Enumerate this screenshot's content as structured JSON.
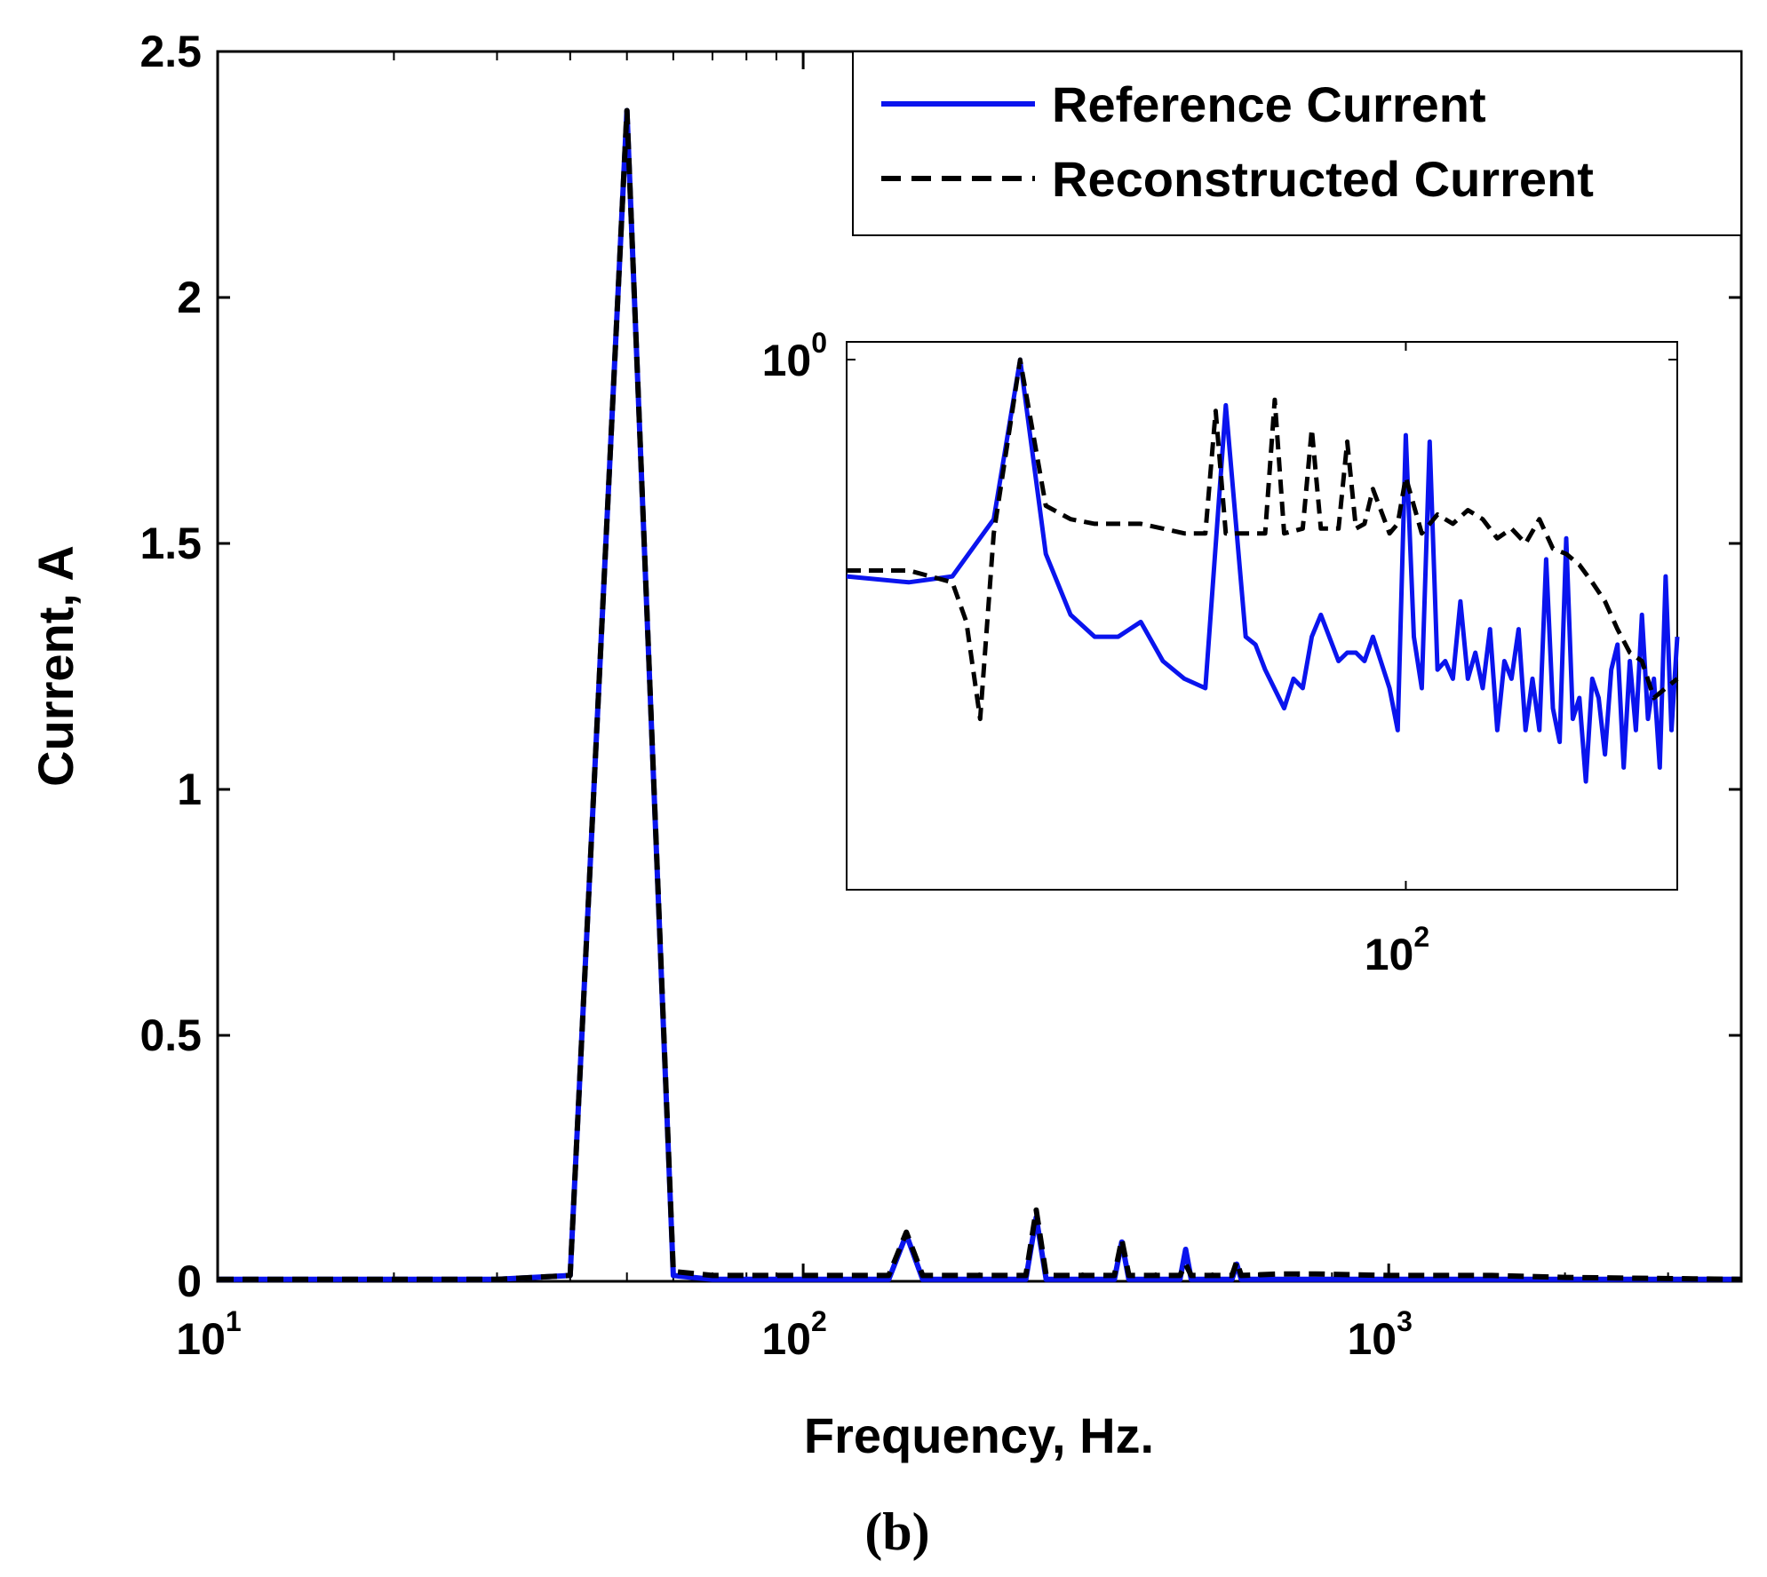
{
  "caption": "(b)",
  "colors": {
    "reference": "#0a14ee",
    "reconstructed": "#000000"
  },
  "chart_data": [
    {
      "type": "line",
      "xlabel": "Frequency, Hz.",
      "ylabel": "Current, A",
      "xscale": "log",
      "xlim": [
        10,
        4000
      ],
      "ylim": [
        0,
        2.5
      ],
      "yticks": [
        "0",
        "0.5",
        "1",
        "1.5",
        "2",
        "2.5"
      ],
      "xticks": [
        {
          "base": "10",
          "exp": "1"
        },
        {
          "base": "10",
          "exp": "2"
        },
        {
          "base": "10",
          "exp": "3"
        }
      ],
      "grid": false,
      "legend_position": "top-right",
      "series": [
        {
          "name": "Reference Current",
          "style": "solid",
          "x": [
            10,
            30,
            40,
            50,
            60,
            70,
            100,
            140,
            150,
            160,
            240,
            250,
            260,
            340,
            350,
            360,
            440,
            450,
            460,
            540,
            550,
            560,
            650,
            750,
            1000,
            1500,
            2000,
            4000
          ],
          "y": [
            0.004,
            0.004,
            0.012,
            2.38,
            0.012,
            0.004,
            0.004,
            0.004,
            0.095,
            0.004,
            0.004,
            0.13,
            0.004,
            0.004,
            0.08,
            0.004,
            0.004,
            0.065,
            0.004,
            0.004,
            0.035,
            0.004,
            0.004,
            0.004,
            0.004,
            0.004,
            0.004,
            0.004
          ]
        },
        {
          "name": "Reconstructed Current",
          "style": "dashed",
          "x": [
            10,
            30,
            40,
            50,
            60,
            70,
            100,
            140,
            150,
            160,
            240,
            250,
            260,
            340,
            350,
            360,
            440,
            450,
            460,
            540,
            550,
            560,
            650,
            750,
            1000,
            1500,
            2000,
            4000
          ],
          "y": [
            0.004,
            0.004,
            0.012,
            2.38,
            0.02,
            0.012,
            0.012,
            0.012,
            0.1,
            0.012,
            0.012,
            0.145,
            0.012,
            0.012,
            0.085,
            0.012,
            0.012,
            0.035,
            0.012,
            0.012,
            0.04,
            0.012,
            0.015,
            0.015,
            0.012,
            0.012,
            0.008,
            0.004
          ]
        }
      ]
    },
    {
      "type": "line",
      "role": "inset",
      "xscale": "log",
      "yscale": "log",
      "xlim": [
        50,
        140
      ],
      "ylim": [
        0.1,
        1.08
      ],
      "xticks": [
        {
          "base": "10",
          "exp": "2"
        }
      ],
      "yticks": [
        {
          "base": "10",
          "exp": "0"
        }
      ],
      "series": [
        {
          "name": "Reference Current",
          "style": "solid",
          "x": [
            50,
            54,
            57,
            60,
            62,
            64,
            66,
            68,
            70,
            72,
            74,
            76,
            78,
            80,
            82,
            83,
            84,
            86,
            87,
            88,
            89,
            90,
            92,
            93,
            94,
            95,
            96,
            98,
            99,
            100,
            101,
            102,
            103,
            104,
            105,
            106,
            107,
            108,
            109,
            110,
            111,
            112,
            113,
            114,
            115,
            116,
            117,
            118,
            119,
            120,
            121,
            122,
            123,
            124,
            125,
            126,
            127,
            128,
            129,
            130,
            131,
            132,
            133,
            134,
            135,
            136,
            137,
            138,
            139,
            140
          ],
          "y": [
            0.39,
            0.38,
            0.39,
            0.5,
            1.0,
            0.43,
            0.33,
            0.3,
            0.3,
            0.32,
            0.27,
            0.25,
            0.24,
            0.82,
            0.3,
            0.29,
            0.26,
            0.22,
            0.25,
            0.24,
            0.3,
            0.33,
            0.27,
            0.28,
            0.28,
            0.27,
            0.3,
            0.24,
            0.2,
            0.72,
            0.3,
            0.24,
            0.7,
            0.26,
            0.27,
            0.25,
            0.35,
            0.25,
            0.28,
            0.24,
            0.31,
            0.2,
            0.27,
            0.25,
            0.31,
            0.2,
            0.25,
            0.2,
            0.42,
            0.22,
            0.19,
            0.46,
            0.21,
            0.23,
            0.16,
            0.25,
            0.23,
            0.18,
            0.26,
            0.29,
            0.17,
            0.27,
            0.2,
            0.33,
            0.21,
            0.25,
            0.17,
            0.39,
            0.2,
            0.3
          ]
        },
        {
          "name": "Reconstructed Current",
          "style": "dashed",
          "x": [
            50,
            54,
            57,
            58,
            59,
            60,
            62,
            64,
            66,
            68,
            70,
            72,
            74,
            76,
            78,
            79,
            80,
            82,
            84,
            85,
            86,
            88,
            89,
            90,
            92,
            93,
            94,
            95,
            96,
            98,
            99,
            100,
            102,
            104,
            106,
            108,
            110,
            112,
            114,
            116,
            118,
            120,
            122,
            124,
            126,
            128,
            130,
            132,
            134,
            136,
            138,
            140
          ],
          "y": [
            0.4,
            0.4,
            0.38,
            0.32,
            0.21,
            0.47,
            1.0,
            0.53,
            0.5,
            0.49,
            0.49,
            0.49,
            0.48,
            0.47,
            0.47,
            0.8,
            0.47,
            0.47,
            0.47,
            0.84,
            0.47,
            0.48,
            0.74,
            0.48,
            0.48,
            0.7,
            0.48,
            0.49,
            0.57,
            0.47,
            0.49,
            0.6,
            0.47,
            0.51,
            0.49,
            0.52,
            0.5,
            0.46,
            0.48,
            0.45,
            0.5,
            0.44,
            0.43,
            0.41,
            0.38,
            0.35,
            0.31,
            0.28,
            0.27,
            0.23,
            0.24,
            0.25
          ]
        }
      ]
    }
  ]
}
